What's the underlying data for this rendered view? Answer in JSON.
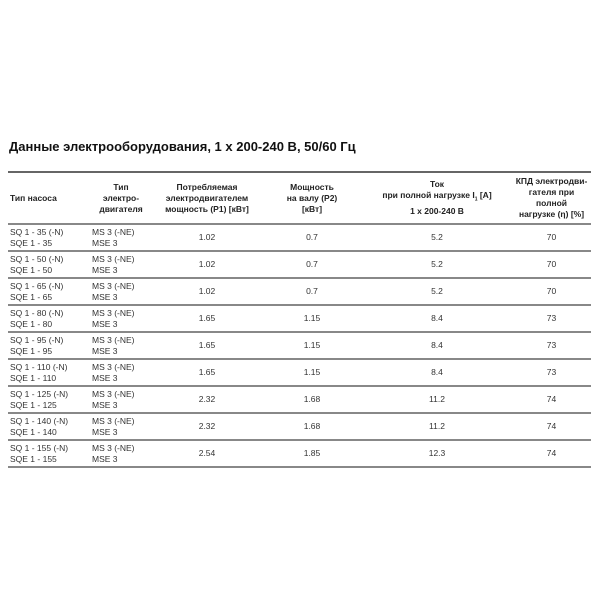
{
  "title": "Данные электрооборудования, 1 x 200-240 В, 50/60 Гц",
  "headers": {
    "pump": "Тип насоса",
    "motor": [
      "Тип",
      "электро-",
      "двигателя"
    ],
    "p1": [
      "Потребляемая",
      "электродвигателем",
      "мощность (P1) [кВт]"
    ],
    "p2": [
      "Мощность",
      "на валу (P2)",
      "[кВт]"
    ],
    "current_a": "Ток",
    "current_b": "при полной нагрузке I",
    "current_sub": "1",
    "current_c": " [A]",
    "current_d": "1 x 200-240 В",
    "eff": [
      "КПД электродви-",
      "гателя при полной",
      "нагрузке (η) [%]"
    ]
  },
  "rows": [
    {
      "pump": [
        "SQ 1 - 35 (-N)",
        "SQE 1 - 35"
      ],
      "motor": [
        "MS 3 (-NE)",
        "MSE 3"
      ],
      "p1": "1.02",
      "p2": "0.7",
      "current": "5.2",
      "eff": "70"
    },
    {
      "pump": [
        "SQ 1 - 50 (-N)",
        "SQE 1 - 50"
      ],
      "motor": [
        "MS 3 (-NE)",
        "MSE 3"
      ],
      "p1": "1.02",
      "p2": "0.7",
      "current": "5.2",
      "eff": "70"
    },
    {
      "pump": [
        "SQ 1 - 65 (-N)",
        "SQE 1 - 65"
      ],
      "motor": [
        "MS 3 (-NE)",
        "MSE 3"
      ],
      "p1": "1.02",
      "p2": "0.7",
      "current": "5.2",
      "eff": "70"
    },
    {
      "pump": [
        "SQ 1 - 80 (-N)",
        "SQE 1 - 80"
      ],
      "motor": [
        "MS 3 (-NE)",
        "MSE 3"
      ],
      "p1": "1.65",
      "p2": "1.15",
      "current": "8.4",
      "eff": "73"
    },
    {
      "pump": [
        "SQ 1 - 95 (-N)",
        "SQE 1 - 95"
      ],
      "motor": [
        "MS 3 (-NE)",
        "MSE 3"
      ],
      "p1": "1.65",
      "p2": "1.15",
      "current": "8.4",
      "eff": "73"
    },
    {
      "pump": [
        "SQ 1 - 110 (-N)",
        "SQE 1 - 110"
      ],
      "motor": [
        "MS 3 (-NE)",
        "MSE 3"
      ],
      "p1": "1.65",
      "p2": "1.15",
      "current": "8.4",
      "eff": "73"
    },
    {
      "pump": [
        "SQ 1 - 125 (-N)",
        "SQE 1 - 125"
      ],
      "motor": [
        "MS 3 (-NE)",
        "MSE 3"
      ],
      "p1": "2.32",
      "p2": "1.68",
      "current": "11.2",
      "eff": "74"
    },
    {
      "pump": [
        "SQ 1 - 140 (-N)",
        "SQE 1 - 140"
      ],
      "motor": [
        "MS 3 (-NE)",
        "MSE 3"
      ],
      "p1": "2.32",
      "p2": "1.68",
      "current": "11.2",
      "eff": "74"
    },
    {
      "pump": [
        "SQ 1 - 155 (-N)",
        "SQE 1 - 155"
      ],
      "motor": [
        "MS 3 (-NE)",
        "MSE 3"
      ],
      "p1": "2.54",
      "p2": "1.85",
      "current": "12.3",
      "eff": "74"
    }
  ]
}
